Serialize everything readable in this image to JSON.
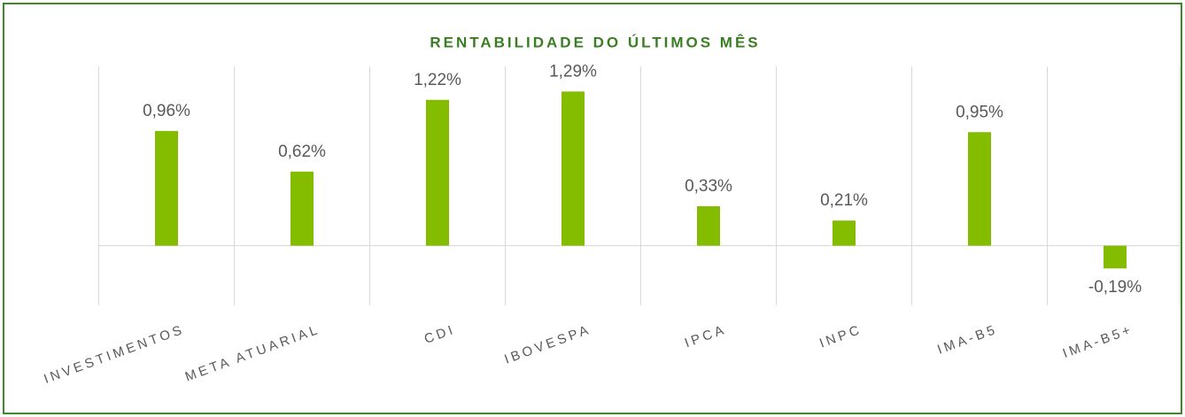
{
  "chart_data": {
    "type": "bar",
    "title": "RENTABILIDADE DO ÚLTIMOS MÊS",
    "categories": [
      "INVESTIMENTOS",
      "META ATUARIAL",
      "CDI",
      "IBOVESPA",
      "IPCA",
      "INPC",
      "IMA-B5",
      "IMA-B5+"
    ],
    "values": [
      0.96,
      0.62,
      1.22,
      1.29,
      0.33,
      0.21,
      0.95,
      -0.19
    ],
    "value_labels": [
      "0,96%",
      "0,62%",
      "1,22%",
      "1,29%",
      "0,33%",
      "0,21%",
      "0,95%",
      "-0,19%"
    ],
    "color": "#84bd00",
    "ylim": [
      -0.5,
      1.5
    ]
  }
}
